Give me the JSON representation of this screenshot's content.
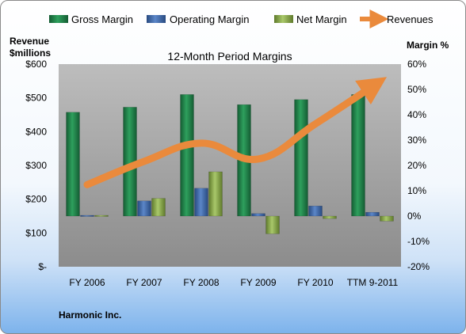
{
  "chart_data": {
    "type": "bar",
    "title": "12-Month Period Margins",
    "company": "Harmonic Inc.",
    "left_axis_label_line1": "Revenue",
    "left_axis_label_line2": "$millions",
    "right_axis_label": "Margin %",
    "categories": [
      "FY 2006",
      "FY 2007",
      "FY 2008",
      "FY 2009",
      "FY 2010",
      "TTM 9-2011"
    ],
    "left_ticks": [
      "$600",
      "$500",
      "$400",
      "$300",
      "$200",
      "$100",
      "$-"
    ],
    "right_ticks": [
      "60%",
      "50%",
      "40%",
      "30%",
      "20%",
      "10%",
      "0%",
      "-10%",
      "-20%"
    ],
    "ylim_left": [
      0,
      600
    ],
    "ylim_right": [
      -20,
      60
    ],
    "grid": false,
    "legend_position": "top",
    "series": [
      {
        "name": "Gross Margin",
        "axis": "right",
        "kind": "bar",
        "color": "#1e8449",
        "values": [
          41,
          43,
          48,
          44,
          46,
          48
        ]
      },
      {
        "name": "Operating Margin",
        "axis": "right",
        "kind": "bar",
        "color": "#3e67a8",
        "values": [
          0.3,
          6,
          11,
          1,
          4,
          1.5
        ]
      },
      {
        "name": "Net Margin",
        "axis": "right",
        "kind": "bar",
        "color": "#8db04b",
        "values": [
          0.3,
          7,
          17.5,
          -7,
          -1,
          -2
        ]
      },
      {
        "name": "Revenues",
        "axis": "left",
        "kind": "line",
        "color": "#ea8a3c",
        "values": [
          243,
          312,
          366,
          319,
          423,
          534
        ]
      }
    ]
  }
}
